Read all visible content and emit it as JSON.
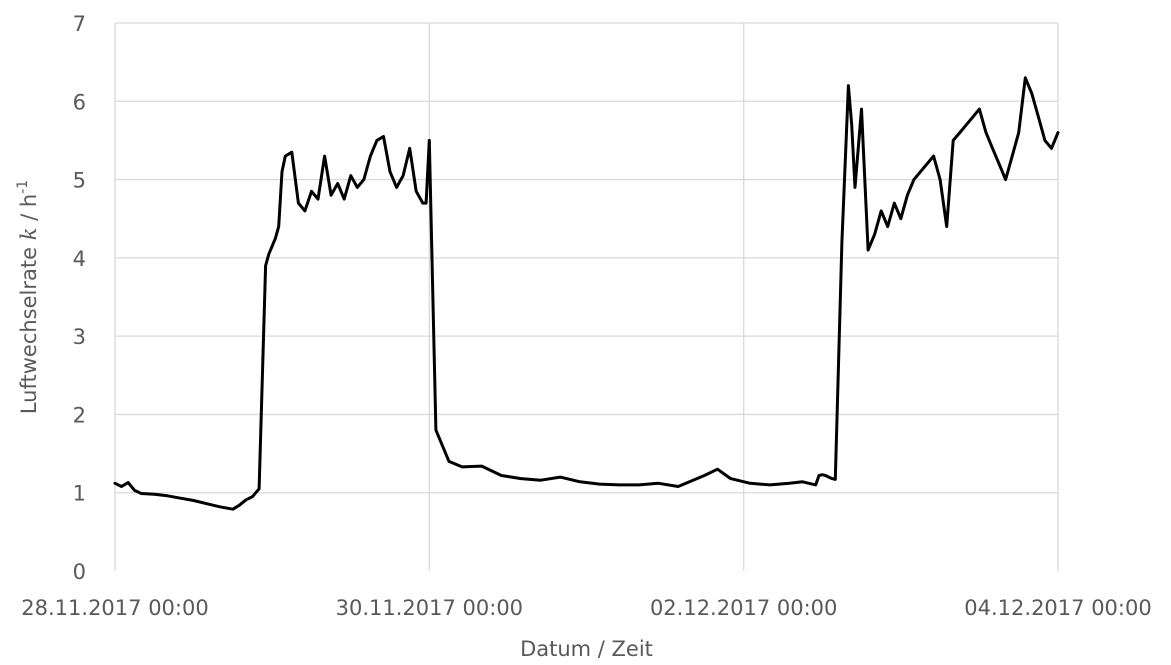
{
  "chart_data": {
    "type": "line",
    "title": "",
    "xlabel": "Datum / Zeit",
    "ylabel": {
      "prefix": "Luftwechselrate ",
      "symbol": "k",
      "middle": " / h",
      "superscript": "-1"
    },
    "ylim": [
      0,
      7
    ],
    "yticks": [
      0,
      1,
      2,
      3,
      4,
      5,
      6,
      7
    ],
    "xlim": [
      "2017-11-28 00:00",
      "2017-12-04 00:00"
    ],
    "xticks": [
      "28.11.2017 00:00",
      "30.11.2017 00:00",
      "02.12.2017 00:00",
      "04.12.2017 00:00"
    ],
    "grid": true,
    "legend": "none",
    "line_color": "#000000",
    "series": [
      {
        "x": [
          "2017-11-28 00:00",
          "2017-11-28 01:00",
          "2017-11-28 02:00",
          "2017-11-28 03:00",
          "2017-11-28 04:00",
          "2017-11-28 06:00",
          "2017-11-28 08:00",
          "2017-11-28 10:00",
          "2017-11-28 12:00",
          "2017-11-28 14:00",
          "2017-11-28 16:00",
          "2017-11-28 18:00",
          "2017-11-28 19:00",
          "2017-11-28 20:00",
          "2017-11-28 21:00",
          "2017-11-28 22:00",
          "2017-11-28 23:00",
          "2017-11-28 23:30",
          "2017-11-29 00:30",
          "2017-11-29 01:00",
          "2017-11-29 01:30",
          "2017-11-29 02:00",
          "2017-11-29 03:00",
          "2017-11-29 04:00",
          "2017-11-29 05:00",
          "2017-11-29 06:00",
          "2017-11-29 07:00",
          "2017-11-29 08:00",
          "2017-11-29 09:00",
          "2017-11-29 10:00",
          "2017-11-29 11:00",
          "2017-11-29 12:00",
          "2017-11-29 13:00",
          "2017-11-29 14:00",
          "2017-11-29 15:00",
          "2017-11-29 16:00",
          "2017-11-29 17:00",
          "2017-11-29 18:00",
          "2017-11-29 19:00",
          "2017-11-29 20:00",
          "2017-11-29 21:00",
          "2017-11-29 22:00",
          "2017-11-29 23:00",
          "2017-11-29 23:30",
          "2017-11-30 00:00",
          "2017-11-30 01:00",
          "2017-11-30 03:00",
          "2017-11-30 05:00",
          "2017-11-30 08:00",
          "2017-11-30 11:00",
          "2017-11-30 14:00",
          "2017-11-30 17:00",
          "2017-11-30 20:00",
          "2017-11-30 23:00",
          "2017-12-01 02:00",
          "2017-12-01 05:00",
          "2017-12-01 08:00",
          "2017-12-01 11:00",
          "2017-12-01 14:00",
          "2017-12-01 16:00",
          "2017-12-01 18:00",
          "2017-12-01 20:00",
          "2017-12-01 22:00",
          "2017-12-02 01:00",
          "2017-12-02 04:00",
          "2017-12-02 07:00",
          "2017-12-02 09:00",
          "2017-12-02 11:00",
          "2017-12-02 11:30",
          "2017-12-02 12:00",
          "2017-12-02 12:30",
          "2017-12-02 13:00",
          "2017-12-02 13:30",
          "2017-12-02 14:00",
          "2017-12-02 15:00",
          "2017-12-02 16:00",
          "2017-12-02 16:30",
          "2017-12-02 17:00",
          "2017-12-02 18:00",
          "2017-12-02 19:00",
          "2017-12-02 20:00",
          "2017-12-02 21:00",
          "2017-12-02 22:00",
          "2017-12-02 23:00",
          "2017-12-03 00:00",
          "2017-12-03 01:00",
          "2017-12-03 02:00",
          "2017-12-03 03:00",
          "2017-12-03 04:00",
          "2017-12-03 05:00",
          "2017-12-03 06:00",
          "2017-12-03 07:00",
          "2017-12-03 08:00",
          "2017-12-03 09:00",
          "2017-12-03 10:00",
          "2017-12-03 11:00",
          "2017-12-03 12:00",
          "2017-12-03 13:00",
          "2017-12-03 14:00",
          "2017-12-03 15:00",
          "2017-12-03 16:00",
          "2017-12-03 17:00",
          "2017-12-03 18:00",
          "2017-12-03 19:00",
          "2017-12-03 20:00",
          "2017-12-03 21:00",
          "2017-12-03 22:00",
          "2017-12-03 23:00",
          "2017-12-04 00:00"
        ],
        "y": [
          1.12,
          1.08,
          1.13,
          1.03,
          0.99,
          0.98,
          0.96,
          0.93,
          0.9,
          0.86,
          0.82,
          0.79,
          0.84,
          0.91,
          0.95,
          1.05,
          3.9,
          4.05,
          4.25,
          4.4,
          5.1,
          5.3,
          5.35,
          4.7,
          4.6,
          4.85,
          4.75,
          5.3,
          4.8,
          4.95,
          4.75,
          5.05,
          4.9,
          5.0,
          5.3,
          5.5,
          5.55,
          5.1,
          4.9,
          5.05,
          5.4,
          4.85,
          4.7,
          4.7,
          5.5,
          1.8,
          1.4,
          1.33,
          1.34,
          1.22,
          1.18,
          1.16,
          1.2,
          1.14,
          1.11,
          1.1,
          1.1,
          1.12,
          1.08,
          1.15,
          1.22,
          1.3,
          1.18,
          1.12,
          1.1,
          1.12,
          1.14,
          1.1,
          1.22,
          1.23,
          1.22,
          1.2,
          1.18,
          1.17,
          4.2,
          6.2,
          5.7,
          4.9,
          5.9,
          4.1,
          4.3,
          4.6,
          4.4,
          4.7,
          4.5,
          4.8,
          5.0,
          5.1,
          5.2,
          5.3,
          5.0,
          4.4,
          5.5,
          5.6,
          5.7,
          5.8,
          5.9,
          5.6,
          5.4,
          5.2,
          5.0,
          5.3,
          5.6,
          6.3,
          6.1,
          5.8,
          5.5,
          5.4,
          5.6
        ]
      }
    ]
  }
}
